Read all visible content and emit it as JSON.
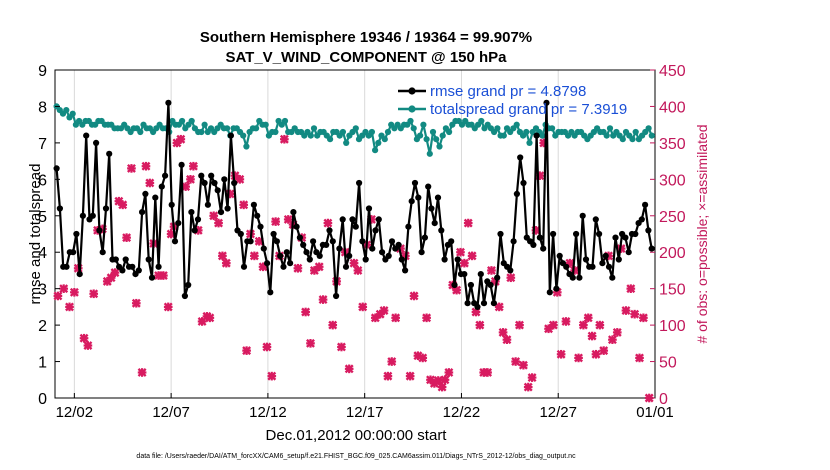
{
  "chart_data": {
    "type": "line",
    "title_line1": "Southern Hemisphere 19346 / 19364 = 99.907%",
    "title_line2": "SAT_V_WIND_COMPONENT @ 150 hPa",
    "xlabel": "Dec.01,2012 00:00:00 start",
    "ylabel_left": "rmse and totalspread",
    "ylabel_right": "# of obs: o=possible; ×=assimilated",
    "footer": "data file: /Users/raeder/DAI/ATM_forcXX/CAM6_setup/f.e21.FHIST_BGC.f09_025.CAM6assim.011/Diags_NTrS_2012-12/obs_diag_output.nc",
    "xlim": [
      0,
      31
    ],
    "ylim_left": [
      0,
      9
    ],
    "ylim_right": [
      0,
      450
    ],
    "x_ticks": [
      {
        "x": 1,
        "label": "12/02"
      },
      {
        "x": 6,
        "label": "12/07"
      },
      {
        "x": 11,
        "label": "12/12"
      },
      {
        "x": 16,
        "label": "12/17"
      },
      {
        "x": 21,
        "label": "12/22"
      },
      {
        "x": 26,
        "label": "12/27"
      },
      {
        "x": 31,
        "label": "01/01"
      }
    ],
    "y_ticks_left": [
      "0",
      "1",
      "2",
      "3",
      "4",
      "5",
      "6",
      "7",
      "8",
      "9"
    ],
    "y_ticks_right": [
      "0",
      "50",
      "100",
      "150",
      "200",
      "250",
      "300",
      "350",
      "400",
      "450"
    ],
    "colors": {
      "rmse": "#000000",
      "spread": "#128a82",
      "obs": "#d81b60",
      "legend_text": "#1a4fd6",
      "right_axis": "#c2185b"
    },
    "series": [
      {
        "name": "rmse grand pr = 4.8798",
        "color": "#000000",
        "values": [
          6.3,
          5.2,
          3.6,
          3.6,
          4.0,
          4.0,
          4.5,
          3.4,
          5.0,
          7.2,
          4.9,
          5.0,
          7.0,
          4.6,
          4.0,
          5.2,
          6.7,
          3.8,
          3.8,
          3.6,
          3.5,
          3.8,
          3.6,
          3.6,
          3.4,
          3.5,
          5.1,
          5.6,
          3.8,
          3.3,
          5.5,
          3.6,
          5.8,
          6.1,
          8.1,
          5.3,
          4.3,
          4.8,
          6.4,
          2.8,
          3.1,
          5.1,
          4.6,
          4.9,
          6.1,
          5.9,
          5.3,
          6.1,
          5.9,
          5.7,
          5.1,
          6.0,
          5.2,
          7.2,
          5.9,
          4.6,
          4.5,
          3.6,
          4.3,
          4.3,
          5.3,
          5.0,
          4.7,
          4.1,
          3.7,
          2.9,
          4.5,
          4.3,
          3.9,
          3.6,
          4.0,
          3.7,
          5.1,
          4.7,
          4.4,
          4.2,
          4.0,
          3.8,
          4.3,
          4.0,
          3.9,
          4.2,
          4.2,
          4.6,
          4.3,
          2.8,
          4.1,
          4.9,
          3.6,
          3.9,
          4.9,
          4.7,
          5.9,
          4.3,
          3.8,
          5.2,
          4.1,
          4.6,
          4.9,
          4.0,
          3.8,
          3.9,
          4.3,
          4.1,
          4.2,
          3.8,
          3.5,
          4.7,
          5.4,
          5.9,
          5.5,
          4.0,
          4.4,
          5.8,
          5.2,
          4.8,
          5.5,
          4.6,
          3.8,
          4.2,
          4.3,
          3.1,
          3.8,
          3.4,
          3.4,
          2.6,
          3.1,
          2.6,
          2.5,
          3.4,
          2.6,
          3.2,
          3.1,
          2.6,
          3.3,
          4.5,
          3.7,
          3.6,
          3.5,
          4.3,
          5.6,
          6.6,
          5.9,
          4.4,
          4.3,
          4.2,
          7.2,
          4.4,
          4.1,
          8.1,
          2.9,
          4.5,
          3.0,
          3.9,
          3.7,
          3.6,
          3.4,
          3.3,
          4.5,
          3.3,
          5.0,
          3.8,
          3.6,
          3.6,
          4.9,
          4.5,
          3.7,
          3.9,
          3.6,
          3.3,
          4.4,
          3.8,
          4.5,
          4.4,
          4.0,
          4.5,
          4.5,
          4.8,
          4.9,
          5.3,
          4.6,
          4.1
        ]
      },
      {
        "name": "totalspread grand pr = 7.3919",
        "color": "#128a82",
        "values": [
          8.0,
          7.9,
          7.8,
          7.9,
          7.7,
          7.8,
          7.5,
          7.6,
          7.5,
          7.6,
          7.6,
          7.5,
          7.5,
          7.6,
          7.6,
          7.5,
          7.5,
          7.5,
          7.4,
          7.4,
          7.4,
          7.5,
          7.4,
          7.3,
          7.4,
          7.4,
          7.3,
          7.5,
          7.4,
          7.4,
          7.3,
          7.4,
          7.5,
          7.4,
          7.4,
          7.3,
          7.6,
          7.5,
          7.5,
          7.6,
          7.4,
          7.5,
          7.6,
          7.4,
          7.3,
          7.3,
          7.5,
          7.3,
          7.4,
          7.3,
          7.4,
          7.5,
          7.4,
          7.4,
          7.2,
          7.4,
          7.4,
          7.3,
          7.2,
          6.9,
          7.3,
          7.4,
          7.4,
          7.6,
          7.5,
          7.5,
          7.2,
          7.3,
          7.3,
          7.6,
          7.5,
          7.6,
          7.3,
          7.3,
          7.4,
          7.3,
          7.3,
          7.2,
          7.3,
          7.2,
          7.4,
          7.2,
          7.3,
          7.3,
          7.2,
          7.1,
          7.3,
          7.3,
          7.2,
          7.3,
          7.0,
          7.2,
          7.3,
          7.4,
          7.1,
          7.2,
          7.3,
          7.2,
          7.3,
          6.8,
          7.0,
          7.2,
          7.1,
          7.3,
          7.5,
          7.4,
          7.5,
          7.4,
          7.5,
          7.5,
          7.6,
          7.4,
          7.1,
          7.2,
          7.5,
          7.1,
          6.7,
          7.3,
          7.1,
          6.9,
          7.2,
          7.4,
          7.3,
          7.5,
          7.6,
          7.6,
          7.5,
          7.6,
          7.5,
          7.5,
          7.4,
          7.5,
          7.6,
          7.4,
          7.5,
          7.4,
          7.3,
          7.4,
          7.2,
          7.2,
          7.4,
          7.3,
          7.4,
          7.5,
          7.3,
          7.2,
          7.3,
          7.0,
          7.3,
          7.4,
          7.3,
          7.2,
          7.5,
          7.4,
          7.4,
          7.2,
          7.3,
          7.3,
          7.3,
          7.2,
          7.3,
          7.2,
          7.3,
          7.3,
          7.2,
          7.1,
          7.2,
          7.3,
          7.4,
          7.3,
          7.3,
          7.2,
          7.4,
          7.2,
          7.3,
          7.2,
          7.1,
          7.3,
          7.2,
          7.1,
          7.3,
          7.1,
          7.2,
          7.3,
          7.4,
          7.2
        ]
      }
    ],
    "obs_assimilated": [
      {
        "x": 0.15,
        "y": 140
      },
      {
        "x": 0.45,
        "y": 150
      },
      {
        "x": 0.75,
        "y": 125
      },
      {
        "x": 1.0,
        "y": 145
      },
      {
        "x": 1.2,
        "y": 178
      },
      {
        "x": 1.5,
        "y": 82
      },
      {
        "x": 1.7,
        "y": 72
      },
      {
        "x": 2.0,
        "y": 143
      },
      {
        "x": 2.2,
        "y": 230
      },
      {
        "x": 2.45,
        "y": 232
      },
      {
        "x": 2.7,
        "y": 160
      },
      {
        "x": 2.9,
        "y": 165
      },
      {
        "x": 3.1,
        "y": 172
      },
      {
        "x": 3.3,
        "y": 270
      },
      {
        "x": 3.5,
        "y": 265
      },
      {
        "x": 3.7,
        "y": 220
      },
      {
        "x": 3.95,
        "y": 315
      },
      {
        "x": 4.2,
        "y": 130
      },
      {
        "x": 4.5,
        "y": 35
      },
      {
        "x": 4.7,
        "y": 318
      },
      {
        "x": 4.9,
        "y": 295
      },
      {
        "x": 5.1,
        "y": 212
      },
      {
        "x": 5.35,
        "y": 168
      },
      {
        "x": 5.6,
        "y": 168
      },
      {
        "x": 5.85,
        "y": 125
      },
      {
        "x": 6.0,
        "y": 225
      },
      {
        "x": 6.15,
        "y": 235
      },
      {
        "x": 6.3,
        "y": 350
      },
      {
        "x": 6.5,
        "y": 355
      },
      {
        "x": 6.75,
        "y": 290
      },
      {
        "x": 7.0,
        "y": 300
      },
      {
        "x": 7.15,
        "y": 318
      },
      {
        "x": 7.4,
        "y": 230
      },
      {
        "x": 7.6,
        "y": 105
      },
      {
        "x": 7.85,
        "y": 112
      },
      {
        "x": 8.0,
        "y": 110
      },
      {
        "x": 8.2,
        "y": 250
      },
      {
        "x": 8.45,
        "y": 240
      },
      {
        "x": 8.65,
        "y": 195
      },
      {
        "x": 8.85,
        "y": 185
      },
      {
        "x": 9.05,
        "y": 280
      },
      {
        "x": 9.3,
        "y": 305
      },
      {
        "x": 9.55,
        "y": 300
      },
      {
        "x": 9.75,
        "y": 265
      },
      {
        "x": 9.9,
        "y": 65
      },
      {
        "x": 10.1,
        "y": 225
      },
      {
        "x": 10.3,
        "y": 195
      },
      {
        "x": 10.55,
        "y": 215
      },
      {
        "x": 10.75,
        "y": 180
      },
      {
        "x": 10.95,
        "y": 70
      },
      {
        "x": 11.2,
        "y": 30
      },
      {
        "x": 11.4,
        "y": 242
      },
      {
        "x": 11.6,
        "y": 195
      },
      {
        "x": 11.85,
        "y": 355
      },
      {
        "x": 12.05,
        "y": 245
      },
      {
        "x": 12.3,
        "y": 238
      },
      {
        "x": 12.55,
        "y": 178
      },
      {
        "x": 12.75,
        "y": 220
      },
      {
        "x": 12.95,
        "y": 118
      },
      {
        "x": 13.2,
        "y": 75
      },
      {
        "x": 13.4,
        "y": 175
      },
      {
        "x": 13.65,
        "y": 180
      },
      {
        "x": 13.85,
        "y": 135
      },
      {
        "x": 14.1,
        "y": 240
      },
      {
        "x": 14.35,
        "y": 100
      },
      {
        "x": 14.55,
        "y": 160
      },
      {
        "x": 14.8,
        "y": 70
      },
      {
        "x": 15.0,
        "y": 200
      },
      {
        "x": 15.2,
        "y": 40
      },
      {
        "x": 15.45,
        "y": 185
      },
      {
        "x": 15.65,
        "y": 175
      },
      {
        "x": 15.9,
        "y": 125
      },
      {
        "x": 16.1,
        "y": 210
      },
      {
        "x": 16.35,
        "y": 245
      },
      {
        "x": 16.55,
        "y": 110
      },
      {
        "x": 16.8,
        "y": 115
      },
      {
        "x": 17.0,
        "y": 120
      },
      {
        "x": 17.2,
        "y": 30
      },
      {
        "x": 17.4,
        "y": 50
      },
      {
        "x": 17.6,
        "y": 110
      },
      {
        "x": 17.85,
        "y": 205
      },
      {
        "x": 18.1,
        "y": 195
      },
      {
        "x": 18.35,
        "y": 30
      },
      {
        "x": 18.55,
        "y": 140
      },
      {
        "x": 18.75,
        "y": 58
      },
      {
        "x": 19.0,
        "y": 55
      },
      {
        "x": 19.2,
        "y": 110
      },
      {
        "x": 19.4,
        "y": 25
      },
      {
        "x": 19.6,
        "y": 20
      },
      {
        "x": 19.8,
        "y": 24
      },
      {
        "x": 20.0,
        "y": 15
      },
      {
        "x": 20.15,
        "y": 25
      },
      {
        "x": 20.35,
        "y": 35
      },
      {
        "x": 20.55,
        "y": 155
      },
      {
        "x": 20.75,
        "y": 148
      },
      {
        "x": 20.95,
        "y": 200
      },
      {
        "x": 21.15,
        "y": 185
      },
      {
        "x": 21.35,
        "y": 240
      },
      {
        "x": 21.55,
        "y": 195
      },
      {
        "x": 21.75,
        "y": 118
      },
      {
        "x": 21.95,
        "y": 100
      },
      {
        "x": 22.15,
        "y": 35
      },
      {
        "x": 22.35,
        "y": 35
      },
      {
        "x": 22.55,
        "y": 175
      },
      {
        "x": 22.75,
        "y": 160
      },
      {
        "x": 22.95,
        "y": 125
      },
      {
        "x": 23.15,
        "y": 90
      },
      {
        "x": 23.35,
        "y": 80
      },
      {
        "x": 23.55,
        "y": 165
      },
      {
        "x": 23.8,
        "y": 50
      },
      {
        "x": 24.0,
        "y": 100
      },
      {
        "x": 24.2,
        "y": 45
      },
      {
        "x": 24.45,
        "y": 15
      },
      {
        "x": 24.65,
        "y": 28
      },
      {
        "x": 24.85,
        "y": 230
      },
      {
        "x": 25.05,
        "y": 305
      },
      {
        "x": 25.25,
        "y": 350
      },
      {
        "x": 25.5,
        "y": 95
      },
      {
        "x": 25.75,
        "y": 100
      },
      {
        "x": 25.95,
        "y": 145
      },
      {
        "x": 26.15,
        "y": 60
      },
      {
        "x": 26.4,
        "y": 105
      },
      {
        "x": 26.6,
        "y": 185
      },
      {
        "x": 26.85,
        "y": 175
      },
      {
        "x": 27.05,
        "y": 55
      },
      {
        "x": 27.3,
        "y": 100
      },
      {
        "x": 27.55,
        "y": 110
      },
      {
        "x": 27.75,
        "y": 85
      },
      {
        "x": 27.95,
        "y": 60
      },
      {
        "x": 28.15,
        "y": 100
      },
      {
        "x": 28.35,
        "y": 65
      },
      {
        "x": 28.6,
        "y": 195
      },
      {
        "x": 28.8,
        "y": 80
      },
      {
        "x": 29.05,
        "y": 90
      },
      {
        "x": 29.25,
        "y": 205
      },
      {
        "x": 29.5,
        "y": 120
      },
      {
        "x": 29.75,
        "y": 150
      },
      {
        "x": 29.95,
        "y": 115
      },
      {
        "x": 30.2,
        "y": 55
      },
      {
        "x": 30.4,
        "y": 110
      },
      {
        "x": 30.7,
        "y": 0
      }
    ]
  }
}
